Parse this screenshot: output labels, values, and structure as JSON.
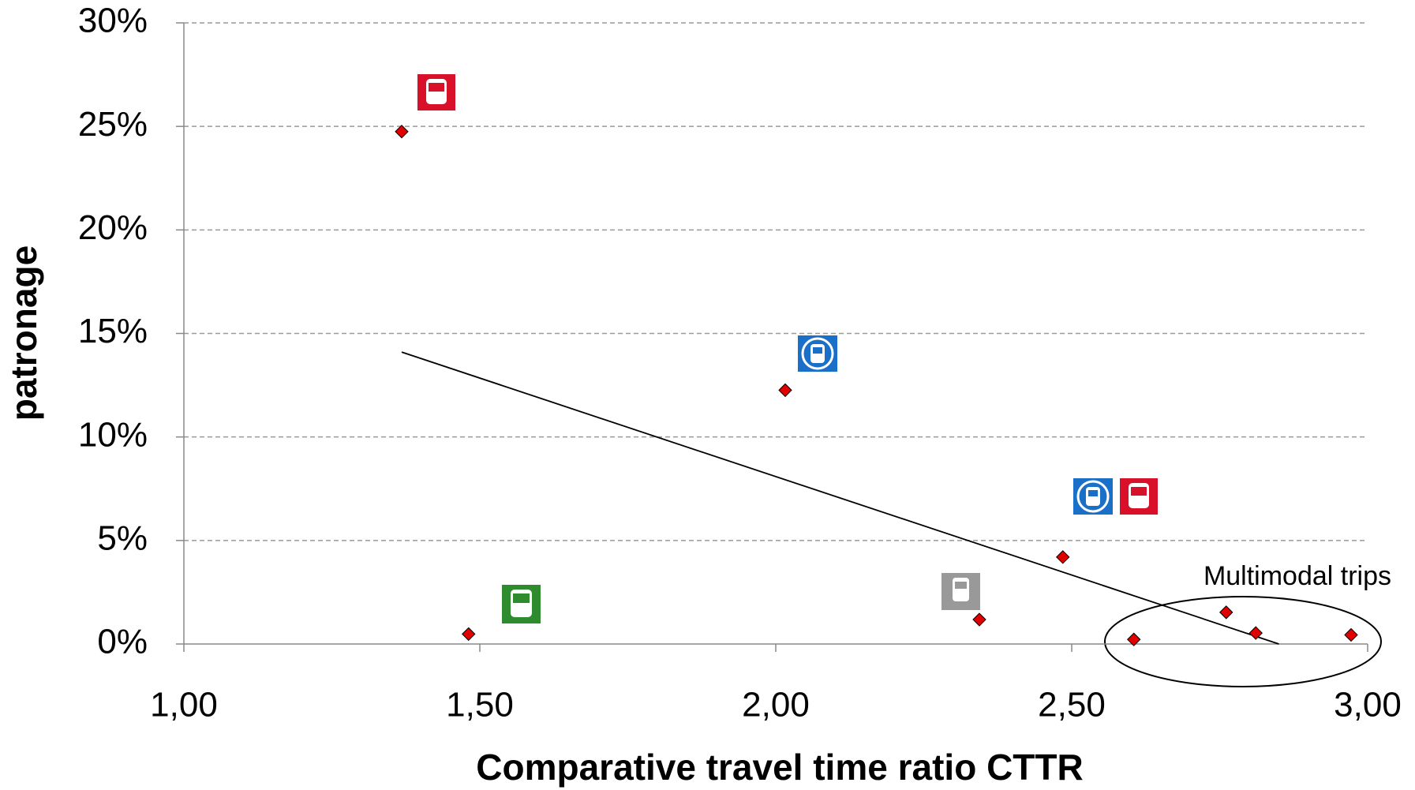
{
  "chart_data": {
    "type": "scatter",
    "xlabel": "Comparative travel time ratio CTTR",
    "ylabel": "patronage",
    "series": [
      {
        "color": "#e00000",
        "x": [
          1.368,
          1.481,
          2.016,
          2.344,
          2.485,
          2.605,
          2.761,
          2.811,
          2.972
        ],
        "values": [
          24.75,
          0.48,
          12.26,
          1.18,
          4.2,
          0.22,
          1.53,
          0.53,
          0.44
        ]
      }
    ],
    "trendline": {
      "x": [
        1.368,
        2.85
      ],
      "values": [
        14.1,
        0
      ]
    },
    "annotations": [
      "Multimodal trips"
    ],
    "xlim": [
      1,
      3
    ],
    "xticks": [
      {
        "value": 1,
        "label": "1,00"
      },
      {
        "value": 1.5,
        "label": "1,50"
      },
      {
        "value": 2,
        "label": "2,00"
      },
      {
        "value": 2.5,
        "label": "2,50"
      },
      {
        "value": 3,
        "label": "3,00"
      }
    ],
    "ylim": [
      0,
      30
    ],
    "yticks": [
      {
        "value": 0,
        "label": "0%"
      },
      {
        "value": 5,
        "label": "5%"
      },
      {
        "value": 10,
        "label": "10%"
      },
      {
        "value": 15,
        "label": "15%"
      },
      {
        "value": 20,
        "label": "20%"
      },
      {
        "value": 25,
        "label": "25%"
      },
      {
        "value": 30,
        "label": "30%"
      }
    ],
    "grid": true
  }
}
